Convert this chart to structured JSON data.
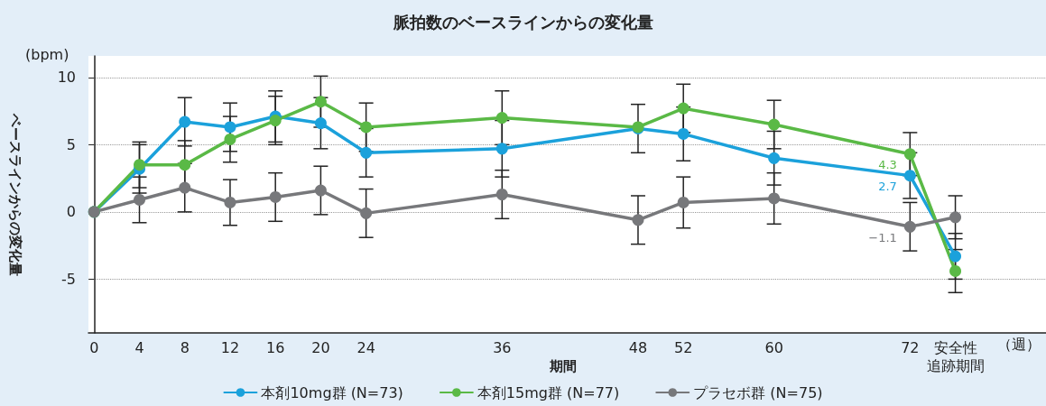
{
  "chart_data": {
    "type": "line",
    "title": "脈拍数のベースラインからの変化量",
    "xlabel": "期間",
    "ylabel": "ベースラインからの変化量",
    "annotations": [
      "(bpm)",
      "（週）"
    ],
    "x": [
      0,
      4,
      8,
      12,
      16,
      20,
      24,
      36,
      48,
      52,
      60,
      72,
      76
    ],
    "series": [
      {
        "name": "本剤10mg群 (N=73)",
        "color": "#1ba1db",
        "values": [
          0,
          3.2,
          6.7,
          6.3,
          7.1,
          6.6,
          4.4,
          4.7,
          6.2,
          5.8,
          4.0,
          2.7,
          -3.3
        ],
        "errors": [
          null,
          1.8,
          1.8,
          1.8,
          1.9,
          1.9,
          1.8,
          2.1,
          [
            4.4,
            8.0
          ],
          2.0,
          2.0,
          1.7,
          1.7
        ],
        "value_labels": [
          null,
          null,
          null,
          null,
          null,
          null,
          null,
          null,
          null,
          null,
          null,
          "2.7",
          null
        ]
      },
      {
        "name": "本剤15mg群 (N=77)",
        "color": "#5ab946",
        "values": [
          0,
          3.5,
          3.5,
          5.4,
          6.8,
          8.2,
          6.3,
          7.0,
          6.3,
          7.7,
          6.5,
          4.3,
          -4.4
        ],
        "errors": [
          null,
          1.7,
          1.8,
          1.7,
          1.8,
          1.9,
          1.8,
          2.0,
          [
            4.4,
            8.0
          ],
          1.8,
          1.8,
          1.6,
          1.6
        ],
        "value_labels": [
          null,
          null,
          null,
          null,
          null,
          null,
          null,
          null,
          null,
          null,
          null,
          "4.3",
          null
        ]
      },
      {
        "name": "プラセボ群 (N=75)",
        "color": "#77787b",
        "values": [
          0,
          0.9,
          1.8,
          0.7,
          1.1,
          1.6,
          -0.1,
          1.3,
          -0.6,
          0.7,
          1.0,
          -1.1,
          -0.4
        ],
        "errors": [
          null,
          1.7,
          1.8,
          1.7,
          1.8,
          1.8,
          1.8,
          1.8,
          1.8,
          1.9,
          1.9,
          1.8,
          1.6
        ],
        "value_labels": [
          null,
          null,
          null,
          null,
          null,
          null,
          null,
          null,
          null,
          null,
          null,
          "−1.1",
          null
        ]
      }
    ],
    "xlim": [
      -0.5,
      84
    ],
    "xticks": [
      0,
      4,
      8,
      12,
      16,
      20,
      24,
      36,
      48,
      52,
      60,
      72,
      {
        "value": 76,
        "label": "安全性追跡期間"
      }
    ],
    "ylim": [
      -9,
      11.6
    ],
    "yticks": [
      10,
      5,
      0,
      -5
    ],
    "grid": "y",
    "legend": "bottom",
    "marker": "circle",
    "line_style": "solid"
  }
}
